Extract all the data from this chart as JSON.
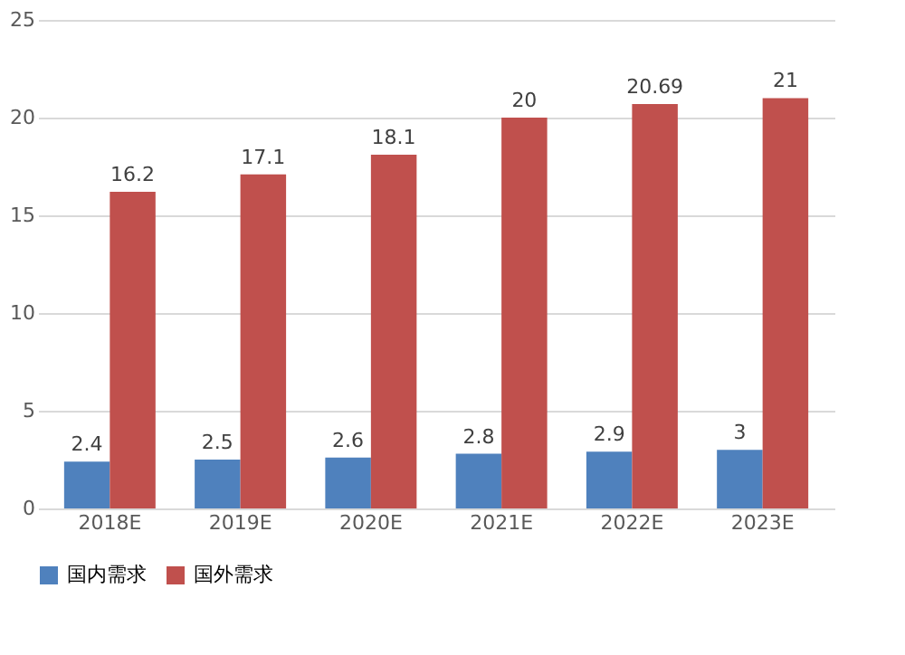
{
  "chart_data": {
    "type": "bar",
    "categories": [
      "2018E",
      "2019E",
      "2020E",
      "2021E",
      "2022E",
      "2023E"
    ],
    "series": [
      {
        "name": "国内需求",
        "color": "#4f81bd",
        "values": [
          2.4,
          2.5,
          2.6,
          2.8,
          2.9,
          3
        ]
      },
      {
        "name": "国外需求",
        "color": "#c0504d",
        "values": [
          16.2,
          17.1,
          18.1,
          20,
          20.69,
          21
        ]
      }
    ],
    "ylim": [
      0,
      25
    ],
    "yticks": [
      0,
      5,
      10,
      15,
      20,
      25
    ],
    "grid": "y",
    "legend": "bottom",
    "data_labels": true
  }
}
